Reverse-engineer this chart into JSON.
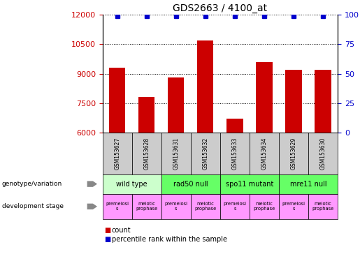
{
  "title": "GDS2663 / 4100_at",
  "samples": [
    "GSM153627",
    "GSM153628",
    "GSM153631",
    "GSM153632",
    "GSM153633",
    "GSM153634",
    "GSM153629",
    "GSM153630"
  ],
  "counts": [
    9300,
    7800,
    8800,
    10700,
    6700,
    9600,
    9200,
    9200
  ],
  "percentile_ranks": [
    99,
    99,
    99,
    99,
    99,
    99,
    99,
    99
  ],
  "ylim_left": [
    6000,
    12000
  ],
  "ylim_right": [
    0,
    100
  ],
  "yticks_left": [
    6000,
    7500,
    9000,
    10500,
    12000
  ],
  "yticks_right": [
    0,
    25,
    50,
    75,
    100
  ],
  "bar_color": "#cc0000",
  "dot_color": "#0000cc",
  "genotype_groups": [
    {
      "label": "wild type",
      "start": 0,
      "end": 2,
      "color": "#ccffcc"
    },
    {
      "label": "rad50 null",
      "start": 2,
      "end": 4,
      "color": "#66ff66"
    },
    {
      "label": "spo11 mutant",
      "start": 4,
      "end": 6,
      "color": "#66ff66"
    },
    {
      "label": "mre11 null",
      "start": 6,
      "end": 8,
      "color": "#66ff66"
    }
  ],
  "dev_labels": [
    "premeiosi\ns",
    "meiotic\nprophase",
    "premeiosi\ns",
    "meiotic\nprophase",
    "premeiosi\ns",
    "meiotic\nprophase",
    "premeiosi\ns",
    "meiotic\nprophase"
  ],
  "dev_stage_color": "#ff99ff",
  "tick_label_color_left": "#cc0000",
  "tick_label_color_right": "#0000cc",
  "background_color": "#ffffff",
  "sample_box_color": "#cccccc",
  "arrow_color": "#888888",
  "legend_red": "#cc0000",
  "legend_blue": "#0000cc"
}
